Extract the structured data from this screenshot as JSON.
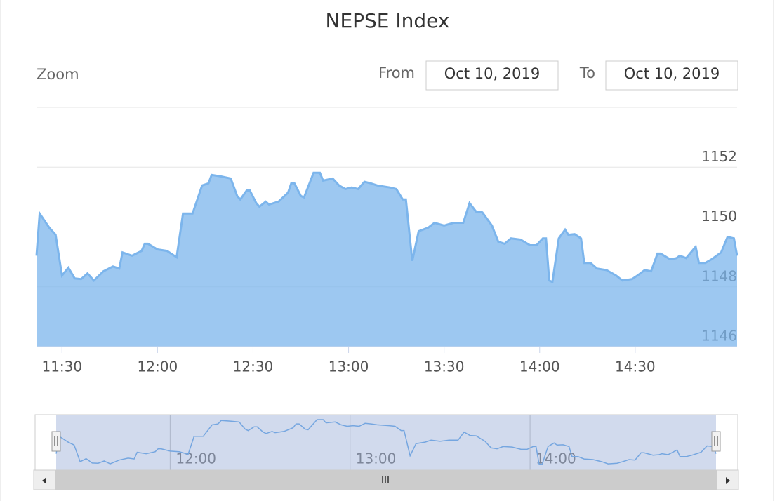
{
  "chart_data": {
    "type": "area",
    "title": "NEPSE Index",
    "range_selector": {
      "zoom_label": "Zoom",
      "from_label": "From",
      "from_value": "Oct 10, 2019",
      "to_label": "To",
      "to_value": "Oct 10, 2019"
    },
    "color": "#7cb5ec",
    "x": [
      "11:22",
      "11:23",
      "11:26",
      "11:28",
      "11:30",
      "11:32",
      "11:34",
      "11:36",
      "11:38",
      "11:40",
      "11:43",
      "11:46",
      "11:48",
      "11:49",
      "11:52",
      "11:55",
      "11:56",
      "11:57",
      "12:00",
      "12:03",
      "12:06",
      "12:08",
      "12:11",
      "12:14",
      "12:16",
      "12:17",
      "12:20",
      "12:23",
      "12:25",
      "12:26",
      "12:28",
      "12:29",
      "12:31",
      "12:32",
      "12:34",
      "12:35",
      "12:38",
      "12:41",
      "12:42",
      "12:43",
      "12:45",
      "12:46",
      "12:49",
      "12:51",
      "12:52",
      "12:55",
      "12:57",
      "12:59",
      "13:01",
      "13:03",
      "13:05",
      "13:07",
      "13:09",
      "13:13",
      "13:15",
      "13:17",
      "13:18",
      "13:20",
      "13:22",
      "13:25",
      "13:27",
      "13:30",
      "13:33",
      "13:36",
      "13:38",
      "13:40",
      "13:42",
      "13:45",
      "13:47",
      "13:49",
      "13:51",
      "13:54",
      "13:57",
      "13:59",
      "14:01",
      "14:02",
      "14:03",
      "14:04",
      "14:06",
      "14:08",
      "14:09",
      "14:11",
      "14:13",
      "14:14",
      "14:16",
      "14:18",
      "14:21",
      "14:24",
      "14:26",
      "14:29",
      "14:31",
      "14:33",
      "14:35",
      "14:37",
      "14:38",
      "14:41",
      "14:43",
      "14:44",
      "14:46",
      "14:49",
      "14:50",
      "14:52",
      "14:54",
      "14:57",
      "14:59",
      "15:01",
      "15:02"
    ],
    "values": [
      1149.04,
      1150.45,
      1149.98,
      1149.74,
      1148.38,
      1148.64,
      1148.28,
      1148.26,
      1148.45,
      1148.21,
      1148.52,
      1148.68,
      1148.61,
      1149.15,
      1149.04,
      1149.2,
      1149.44,
      1149.44,
      1149.25,
      1149.2,
      1148.99,
      1150.45,
      1150.45,
      1151.39,
      1151.46,
      1151.74,
      1151.69,
      1151.62,
      1151.04,
      1150.92,
      1151.22,
      1151.22,
      1150.8,
      1150.68,
      1150.85,
      1150.75,
      1150.85,
      1151.15,
      1151.46,
      1151.46,
      1151.04,
      1150.99,
      1151.81,
      1151.81,
      1151.55,
      1151.62,
      1151.39,
      1151.27,
      1151.32,
      1151.27,
      1151.51,
      1151.46,
      1151.39,
      1151.32,
      1151.27,
      1150.92,
      1150.92,
      1148.87,
      1149.86,
      1149.98,
      1150.14,
      1150.05,
      1150.14,
      1150.14,
      1150.8,
      1150.52,
      1150.49,
      1150.05,
      1149.51,
      1149.44,
      1149.62,
      1149.58,
      1149.39,
      1149.39,
      1149.62,
      1149.62,
      1148.21,
      1148.16,
      1149.62,
      1149.91,
      1149.74,
      1149.76,
      1149.62,
      1148.8,
      1148.8,
      1148.61,
      1148.56,
      1148.38,
      1148.21,
      1148.26,
      1148.4,
      1148.56,
      1148.52,
      1149.11,
      1149.11,
      1148.92,
      1148.96,
      1149.04,
      1148.96,
      1149.34,
      1148.8,
      1148.8,
      1148.92,
      1149.15,
      1149.67,
      1149.62,
      1149.04
    ],
    "xlim": [
      "11:22",
      "15:02"
    ],
    "xticks": [
      "11:30",
      "12:00",
      "12:30",
      "13:00",
      "13:30",
      "14:00",
      "14:30"
    ],
    "ylim": [
      1146,
      1154
    ],
    "yticks": [
      1146,
      1148,
      1150,
      1152
    ],
    "grid": true,
    "navigator": {
      "xticks": [
        "12:00",
        "13:00",
        "14:00"
      ]
    }
  }
}
